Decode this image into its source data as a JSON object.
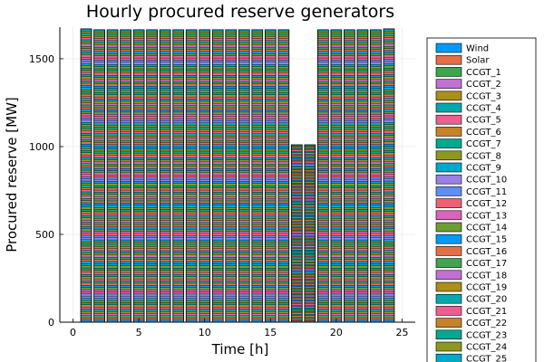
{
  "chart_data": {
    "type": "bar",
    "stacked": true,
    "title": "Hourly procured reserve generators",
    "xlabel": "Time [h]",
    "ylabel": "Procured reserve [MW]",
    "xlim": [
      -1,
      26
    ],
    "ylim": [
      0,
      1680
    ],
    "x_ticks": [
      0,
      5,
      10,
      15,
      20,
      25
    ],
    "y_ticks": [
      0,
      500,
      1000,
      1500
    ],
    "grid": true,
    "legend_position": "right",
    "x": [
      1,
      2,
      3,
      4,
      5,
      6,
      7,
      8,
      9,
      10,
      11,
      12,
      13,
      14,
      15,
      16,
      17,
      18,
      19,
      20,
      21,
      22,
      23,
      24
    ],
    "totals": [
      1670,
      1665,
      1665,
      1665,
      1665,
      1665,
      1665,
      1665,
      1665,
      1665,
      1665,
      1665,
      1665,
      1665,
      1665,
      1665,
      1010,
      1010,
      1665,
      1665,
      1665,
      1665,
      1665,
      1670
    ],
    "series": [
      {
        "name": "Wind",
        "color": "#009AFA"
      },
      {
        "name": "Solar",
        "color": "#E36F47"
      },
      {
        "name": "CCGT_1",
        "color": "#3EA44E"
      },
      {
        "name": "CCGT_2",
        "color": "#C271D2"
      },
      {
        "name": "CCGT_3",
        "color": "#AC8E18"
      },
      {
        "name": "CCGT_4",
        "color": "#00A9AD"
      },
      {
        "name": "CCGT_5",
        "color": "#ED5E93"
      },
      {
        "name": "CCGT_6",
        "color": "#C68225"
      },
      {
        "name": "CCGT_7",
        "color": "#00A98D"
      },
      {
        "name": "CCGT_8",
        "color": "#8E971E"
      },
      {
        "name": "CCGT_9",
        "color": "#00A8CB"
      },
      {
        "name": "CCGT_10",
        "color": "#9B7FE9"
      },
      {
        "name": "CCGT_11",
        "color": "#618DF6"
      },
      {
        "name": "CCGT_12",
        "color": "#F16072"
      },
      {
        "name": "CCGT_13",
        "color": "#DC63BB"
      },
      {
        "name": "CCGT_14",
        "color": "#6D9E33"
      },
      {
        "name": "CCGT_15",
        "color": "#009AFA"
      },
      {
        "name": "CCGT_16",
        "color": "#E36F47"
      },
      {
        "name": "CCGT_17",
        "color": "#3EA44E"
      },
      {
        "name": "CCGT_18",
        "color": "#C271D2"
      },
      {
        "name": "CCGT_19",
        "color": "#AC8E18"
      },
      {
        "name": "CCGT_20",
        "color": "#00A9AD"
      },
      {
        "name": "CCGT_21",
        "color": "#ED5E93"
      },
      {
        "name": "CCGT_22",
        "color": "#C68225"
      },
      {
        "name": "CCGT_23",
        "color": "#00A98D"
      },
      {
        "name": "CCGT_24",
        "color": "#8E971E"
      },
      {
        "name": "CCGT_25",
        "color": "#00A8CB"
      }
    ]
  }
}
